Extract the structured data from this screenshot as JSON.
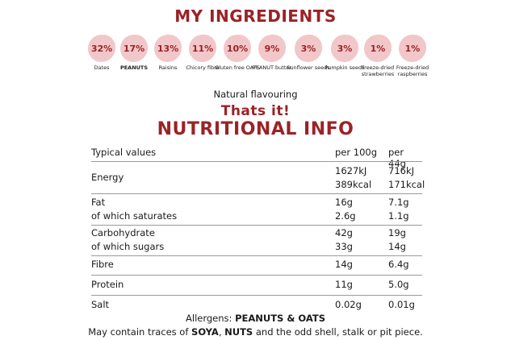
{
  "header": {
    "title": "My Ingredients"
  },
  "ingredients": [
    {
      "pct": "32%",
      "name": "Dates"
    },
    {
      "pct": "17%",
      "name": "PEANUTS"
    },
    {
      "pct": "13%",
      "name": "Raisins"
    },
    {
      "pct": "11%",
      "name": "Chicory fibre"
    },
    {
      "pct": "10%",
      "name": "Gluten free OATS"
    },
    {
      "pct": "9%",
      "name": "PEANUT butter"
    },
    {
      "pct": "3%",
      "name": "Sunflower seeds"
    },
    {
      "pct": "3%",
      "name": "Pumpkin seeds"
    },
    {
      "pct": "1%",
      "name": "Freeze-dried strawberries"
    },
    {
      "pct": "1%",
      "name": "Freeze-dried raspberries"
    }
  ],
  "flavouring": "Natural flavouring",
  "tagline": "Thats it!",
  "nutrition": {
    "title": "Nutritional info",
    "headers": [
      "Typical values",
      "per 100g",
      "per 44g"
    ],
    "rows": {
      "energy": {
        "label": "Energy",
        "v100": [
          "1627kJ",
          "389kcal"
        ],
        "v44": [
          "716kJ",
          "171kcal"
        ]
      },
      "fat": {
        "label": "Fat",
        "sub": "of which saturates",
        "v100": [
          "16g",
          "2.6g"
        ],
        "v44": [
          "7.1g",
          "1.1g"
        ]
      },
      "carb": {
        "label": "Carbohydrate",
        "sub": "of which sugars",
        "v100": [
          "42g",
          "33g"
        ],
        "v44": [
          "19g",
          "14g"
        ]
      },
      "fibre": {
        "label": "Fibre",
        "v100": "14g",
        "v44": "6.4g"
      },
      "protein": {
        "label": "Protein",
        "v100": "11g",
        "v44": "5.0g"
      },
      "salt": {
        "label": "Salt",
        "v100": "0.02g",
        "v44": "0.01g"
      }
    }
  },
  "allergens": {
    "prefix": "Allergens: ",
    "bold": "PEANUTS & OATS",
    "traces_a": "May contain traces of ",
    "soya": "SOYA",
    "comma": ", ",
    "nuts": "NUTS",
    "traces_b": " and the odd shell, stalk or pit piece."
  },
  "colors": {
    "accent": "#9b2226",
    "blob": "#f2c7c9"
  }
}
